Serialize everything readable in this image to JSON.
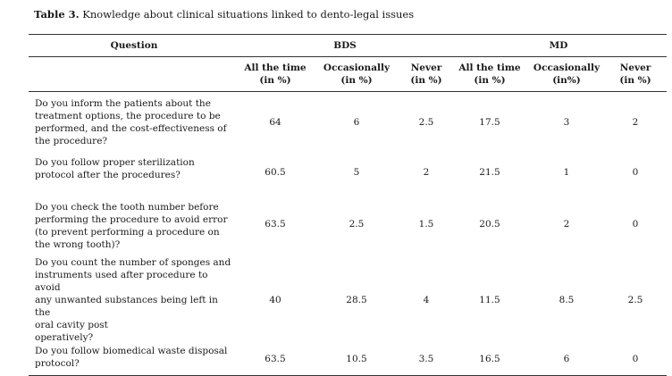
{
  "caption": {
    "label": "Table 3.",
    "text": " Knowledge about clinical situations linked to dento-legal issues"
  },
  "header": {
    "question": "Question",
    "groups": [
      "BDS",
      "MD"
    ],
    "columns": [
      [
        "All the time",
        "(in %)"
      ],
      [
        "Occasionally",
        "(in %)"
      ],
      [
        "Never",
        "(in %)"
      ],
      [
        "All the time",
        "(in %)"
      ],
      [
        "Occasionally",
        "(in%)"
      ],
      [
        "Never",
        "(in %)"
      ]
    ]
  },
  "rows": [
    {
      "question": [
        "Do you inform the patients about the",
        "treatment options, the procedure to be",
        "performed, and the cost-effectiveness of",
        "the procedure?"
      ],
      "values": [
        "64",
        "6",
        "2.5",
        "17.5",
        "3",
        "2"
      ]
    },
    {
      "question": [
        "Do you follow proper sterilization",
        "protocol after the procedures?"
      ],
      "values": [
        "60.5",
        "5",
        "2",
        "21.5",
        "1",
        "0"
      ]
    },
    {
      "question": [
        "Do you check the tooth number before",
        "performing the procedure to avoid error",
        "(to prevent performing a procedure on",
        "the wrong tooth)?"
      ],
      "values": [
        "63.5",
        "2.5",
        "1.5",
        "20.5",
        "2",
        "0"
      ]
    },
    {
      "question": [
        "Do you count the number of sponges and",
        "instruments used after procedure to avoid",
        "any unwanted substances being left in the",
        "oral cavity post",
        "operatively?"
      ],
      "values": [
        "40",
        "28.5",
        "4",
        "11.5",
        "8.5",
        "2.5"
      ]
    },
    {
      "question": [
        "Do you follow biomedical waste disposal",
        "protocol?"
      ],
      "values": [
        "63.5",
        "10.5",
        "3.5",
        "16.5",
        "6",
        "0"
      ]
    }
  ]
}
